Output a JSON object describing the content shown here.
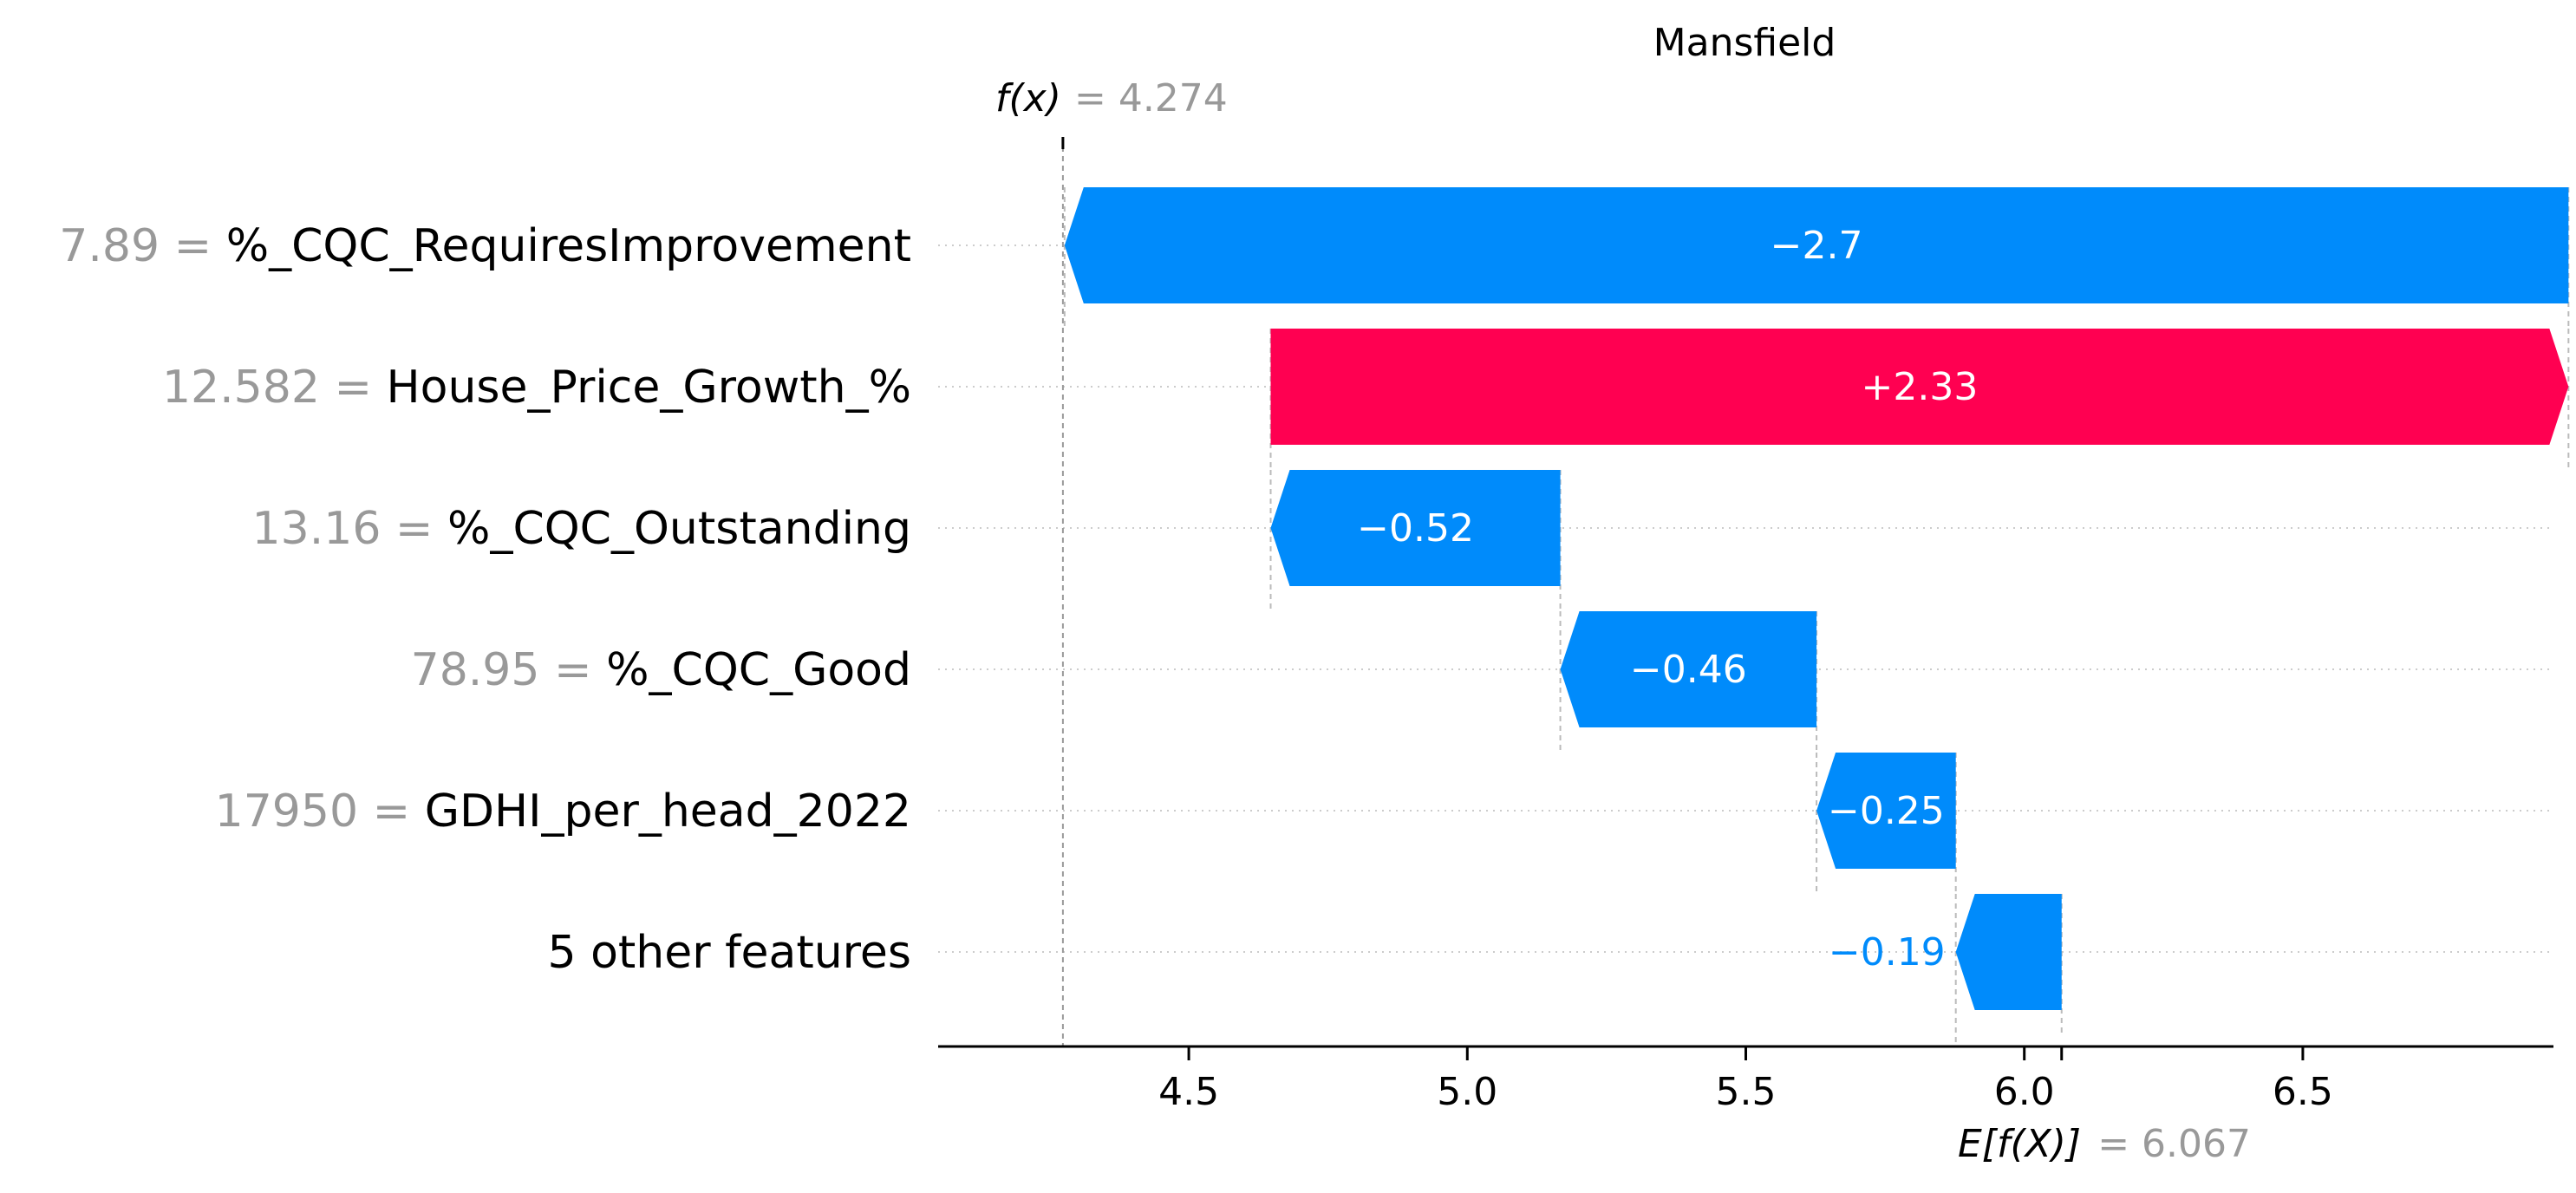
{
  "chart_data": {
    "type": "waterfall",
    "title": "Mansfield",
    "fx_label": "f(x)",
    "fx_value": "= 4.274",
    "ex_label": "E[f(X)]",
    "ex_value": "= 6.067",
    "base_value": 6.067,
    "final_value": 4.274,
    "xlim": [
      4.05,
      6.95
    ],
    "xticks": [
      4.5,
      5.0,
      5.5,
      6.0,
      6.5
    ],
    "xtick_labels": [
      "4.5",
      "5.0",
      "5.5",
      "6.0",
      "6.5"
    ],
    "features": [
      {
        "value": "7.89",
        "name": "%_CQC_RequiresImprovement",
        "contribution": -2.7,
        "label": "−2.7"
      },
      {
        "value": "12.582",
        "name": "House_Price_Growth_%",
        "contribution": 2.33,
        "label": "+2.33"
      },
      {
        "value": "13.16",
        "name": "%_CQC_Outstanding",
        "contribution": -0.52,
        "label": "−0.52"
      },
      {
        "value": "78.95",
        "name": "%_CQC_Good",
        "contribution": -0.46,
        "label": "−0.46"
      },
      {
        "value": "17950",
        "name": "GDHI_per_head_2022",
        "contribution": -0.25,
        "label": "−0.25"
      },
      {
        "value": "",
        "name": "5 other features",
        "contribution": -0.19,
        "label": "−0.19"
      }
    ],
    "colors": {
      "positive": "#ff0051",
      "negative": "#008bfb",
      "grid": "#cccccc",
      "axis": "#000000"
    }
  }
}
